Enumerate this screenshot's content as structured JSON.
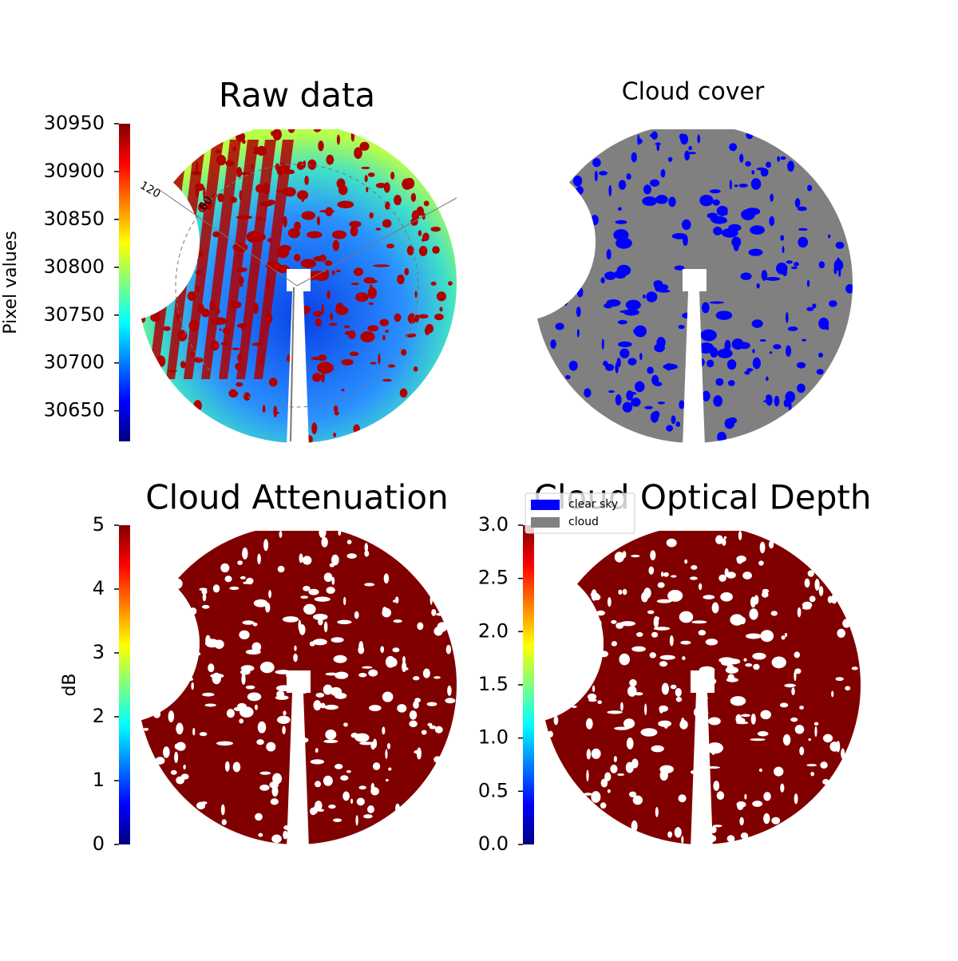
{
  "chart_data": [
    {
      "type": "image",
      "title": "Raw data",
      "colorbar_label": "Pixel values",
      "clim": [
        30618,
        30950
      ],
      "ticks": [
        30650,
        30700,
        30750,
        30800,
        30850,
        30900,
        30950
      ],
      "colormap": "jet",
      "polar_labels": [
        "120",
        "60"
      ]
    },
    {
      "type": "mask",
      "title": "Cloud cover",
      "legend": [
        {
          "name": "clear sky",
          "color": "#0000ff"
        },
        {
          "name": "cloud",
          "color": "#808080"
        }
      ]
    },
    {
      "type": "image",
      "title": "Cloud Attenuation",
      "colorbar_label": "dB",
      "clim": [
        0,
        5
      ],
      "ticks": [
        0,
        1,
        2,
        3,
        4,
        5
      ],
      "colormap": "jet"
    },
    {
      "type": "image",
      "title": "Cloud Optical Depth",
      "clim": [
        0,
        3
      ],
      "ticks": [
        {
          "value": 0,
          "label": "0.0"
        },
        0.5,
        {
          "value": 1,
          "label": "1.0"
        },
        1.5,
        {
          "value": 2,
          "label": "2.0"
        },
        2.5,
        {
          "value": 3,
          "label": "3.0"
        }
      ],
      "colormap": "jet"
    }
  ]
}
